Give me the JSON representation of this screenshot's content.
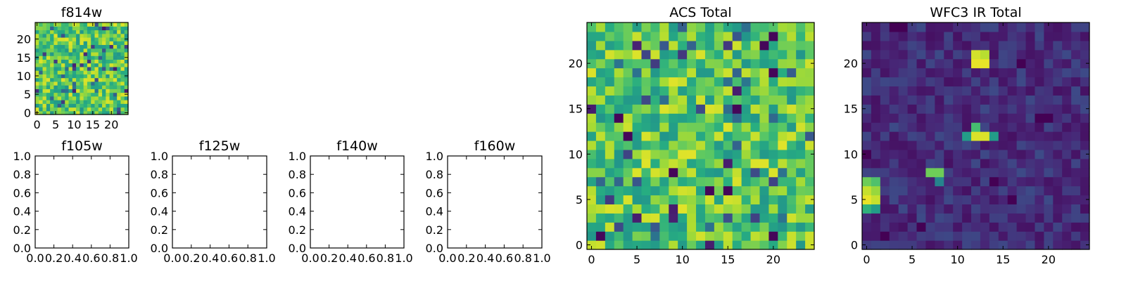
{
  "chart_data": [
    {
      "type": "heatmap",
      "title": "f814w",
      "grid": 25,
      "xlim": [
        -0.5,
        24.5
      ],
      "ylim": [
        -0.5,
        24.5
      ],
      "xticks": [
        "0",
        "5",
        "10",
        "15",
        "20"
      ],
      "yticks": [
        "0",
        "5",
        "10",
        "15",
        "20"
      ],
      "colormap": "viridis",
      "values": "random field; mostly green-yellow (0.55-0.95) with scattered dark blue cells"
    },
    {
      "type": "heatmap",
      "title": "f105w",
      "empty": true,
      "xticks": [
        "0.0",
        "0.2",
        "0.4",
        "0.6",
        "0.8",
        "1.0"
      ],
      "yticks": [
        "0.0",
        "0.2",
        "0.4",
        "0.6",
        "0.8",
        "1.0"
      ]
    },
    {
      "type": "heatmap",
      "title": "f125w",
      "empty": true,
      "xticks": [
        "0.0",
        "0.2",
        "0.4",
        "0.6",
        "0.8",
        "1.0"
      ],
      "yticks": [
        "0.0",
        "0.2",
        "0.4",
        "0.6",
        "0.8",
        "1.0"
      ]
    },
    {
      "type": "heatmap",
      "title": "f140w",
      "empty": true,
      "xticks": [
        "0.0",
        "0.2",
        "0.4",
        "0.6",
        "0.8",
        "1.0"
      ],
      "yticks": [
        "0.0",
        "0.2",
        "0.4",
        "0.6",
        "0.8",
        "1.0"
      ]
    },
    {
      "type": "heatmap",
      "title": "f160w",
      "empty": true,
      "xticks": [
        "0.0",
        "0.2",
        "0.4",
        "0.6",
        "0.8",
        "1.0"
      ],
      "yticks": [
        "0.0",
        "0.2",
        "0.4",
        "0.6",
        "0.8",
        "1.0"
      ]
    },
    {
      "type": "heatmap",
      "title": "ACS Total",
      "grid": 25,
      "xlim": [
        -0.5,
        24.5
      ],
      "ylim": [
        -0.5,
        24.5
      ],
      "xticks": [
        "0",
        "5",
        "10",
        "15",
        "20"
      ],
      "yticks": [
        "0",
        "5",
        "10",
        "15",
        "20"
      ],
      "colormap": "viridis",
      "values": "random field; mostly green-yellow (0.55-0.95) with scattered dark cells",
      "dark_cells": [
        [
          20,
          23
        ],
        [
          19,
          22
        ],
        [
          20,
          19
        ],
        [
          16,
          15
        ],
        [
          3,
          14
        ],
        [
          15,
          6
        ],
        [
          13,
          6
        ],
        [
          20,
          1
        ],
        [
          1,
          1
        ],
        [
          4,
          12
        ],
        [
          9,
          8
        ]
      ]
    },
    {
      "type": "heatmap",
      "title": "WFC3 IR Total",
      "grid": 25,
      "xlim": [
        -0.5,
        24.5
      ],
      "ylim": [
        -0.5,
        24.5
      ],
      "xticks": [
        "0",
        "5",
        "10",
        "15",
        "20"
      ],
      "yticks": [
        "0",
        "5",
        "10",
        "15",
        "20"
      ],
      "colormap": "viridis",
      "values": "mostly low (dark purple-blue, 0.05-0.22) background with bright sources",
      "bright_sources": [
        {
          "x": 12,
          "y": 20,
          "level": 0.97
        },
        {
          "x": 13,
          "y": 20,
          "level": 0.97
        },
        {
          "x": 12,
          "y": 21,
          "level": 0.94
        },
        {
          "x": 13,
          "y": 21,
          "level": 0.9
        },
        {
          "x": 12,
          "y": 12,
          "level": 0.95
        },
        {
          "x": 13,
          "y": 12,
          "level": 0.95
        },
        {
          "x": 12,
          "y": 13,
          "level": 0.7
        },
        {
          "x": 11,
          "y": 12,
          "level": 0.55
        },
        {
          "x": 14,
          "y": 12,
          "level": 0.55
        },
        {
          "x": 0,
          "y": 5,
          "level": 0.97
        },
        {
          "x": 1,
          "y": 5,
          "level": 0.92
        },
        {
          "x": 0,
          "y": 6,
          "level": 0.92
        },
        {
          "x": 1,
          "y": 6,
          "level": 0.85
        },
        {
          "x": 0,
          "y": 7,
          "level": 0.78
        },
        {
          "x": 1,
          "y": 7,
          "level": 0.72
        },
        {
          "x": 0,
          "y": 4,
          "level": 0.65
        },
        {
          "x": 1,
          "y": 4,
          "level": 0.55
        },
        {
          "x": 7,
          "y": 8,
          "level": 0.78
        },
        {
          "x": 8,
          "y": 8,
          "level": 0.78
        },
        {
          "x": 8,
          "y": 7,
          "level": 0.45
        }
      ],
      "dark_cells": [
        [
          0,
          10
        ],
        [
          14,
          7
        ],
        [
          16,
          5
        ],
        [
          20,
          14
        ],
        [
          19,
          14
        ],
        [
          4,
          24
        ],
        [
          3,
          24
        ],
        [
          2,
          1
        ],
        [
          17,
          20
        ],
        [
          6,
          2
        ]
      ]
    }
  ]
}
